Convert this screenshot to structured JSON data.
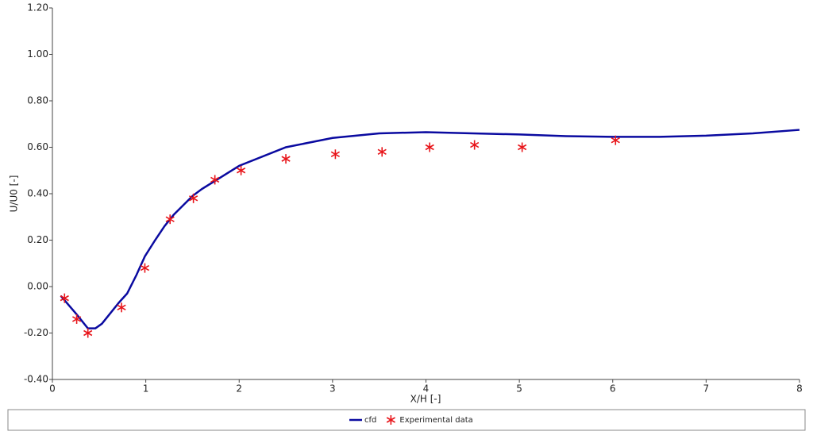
{
  "chart_data": {
    "type": "line",
    "x_label": "X/H [-]",
    "y_label": "U/U0 [-]",
    "xlim": [
      0,
      8
    ],
    "xticks": [
      0,
      1,
      2,
      3,
      4,
      5,
      6,
      7,
      8
    ],
    "ylim": [
      -0.4,
      1.2
    ],
    "yticks": [
      {
        "value": -0.4,
        "label": "-0.40"
      },
      {
        "value": -0.2,
        "label": "-0.20"
      },
      {
        "value": 0,
        "label": "0.00"
      },
      {
        "value": 0.2,
        "label": "0.20"
      },
      {
        "value": 0.4,
        "label": "0.40"
      },
      {
        "value": 0.6,
        "label": "0.60"
      },
      {
        "value": 0.8,
        "label": "0.80"
      },
      {
        "value": 1.0,
        "label": "1.00"
      },
      {
        "value": 1.2,
        "label": "1.20"
      }
    ],
    "grid": false,
    "legend": "bottom",
    "series": [
      {
        "name": "cfd",
        "color": "#0a0aa0",
        "style": "line",
        "x": [
          0.09,
          0.26,
          0.38,
          0.46,
          0.53,
          0.71,
          0.8,
          0.9,
          0.99,
          1.1,
          1.2,
          1.3,
          1.4,
          1.5,
          1.6,
          1.8,
          2.0,
          2.5,
          3.0,
          3.5,
          4.0,
          4.5,
          5.0,
          5.5,
          6.0,
          6.5,
          7.0,
          7.5,
          8.0
        ],
        "values": [
          -0.04,
          -0.12,
          -0.18,
          -0.18,
          -0.16,
          -0.07,
          -0.03,
          0.05,
          0.13,
          0.2,
          0.26,
          0.31,
          0.35,
          0.39,
          0.42,
          0.47,
          0.52,
          0.6,
          0.64,
          0.66,
          0.665,
          0.66,
          0.655,
          0.648,
          0.645,
          0.645,
          0.65,
          0.66,
          0.675
        ]
      },
      {
        "name": "Experimental data",
        "color": "#e8161b",
        "style": "marker",
        "x": [
          0.13,
          0.26,
          0.38,
          0.74,
          0.99,
          1.26,
          1.51,
          1.74,
          2.02,
          2.5,
          3.03,
          3.53,
          4.04,
          4.52,
          5.03,
          6.03
        ],
        "values": [
          -0.05,
          -0.14,
          -0.2,
          -0.09,
          0.08,
          0.29,
          0.38,
          0.46,
          0.5,
          0.55,
          0.57,
          0.58,
          0.6,
          0.61,
          0.6,
          0.63
        ]
      }
    ]
  }
}
